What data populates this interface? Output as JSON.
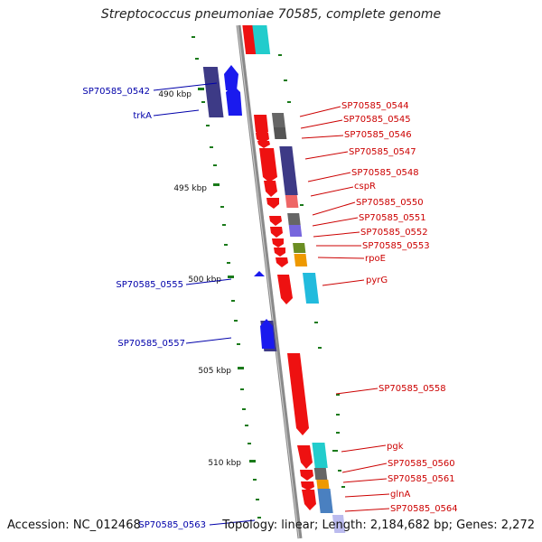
{
  "title": "Streptococcus pneumoniae 70585, complete genome",
  "footer": {
    "accession": "Accession: NC_012468",
    "summary": "Topology: linear; Length: 2,184,682 bp; Genes: 2,272"
  },
  "colors": {
    "backbone": "#8a8a8a",
    "forward_label": "#cc0000",
    "reverse_label": "#0000aa",
    "tick": "#1a7a1a"
  },
  "ticks": [
    {
      "label": "490 kbp"
    },
    {
      "label": "495 kbp"
    },
    {
      "label": "500 kbp"
    },
    {
      "label": "505 kbp"
    },
    {
      "label": "510 kbp"
    }
  ],
  "forward_labels": [
    "SP70585_0544",
    "SP70585_0545",
    "SP70585_0546",
    "SP70585_0547",
    "SP70585_0548",
    "cspR",
    "SP70585_0550",
    "SP70585_0551",
    "SP70585_0552",
    "SP70585_0553",
    "rpoE",
    "pyrG",
    "SP70585_0558",
    "pgk",
    "SP70585_0560",
    "SP70585_0561",
    "glnA",
    "SP70585_0564"
  ],
  "reverse_labels": [
    "SP70585_0542",
    "trkA",
    "SP70585_0555",
    "SP70585_0557",
    "SP70585_0563"
  ]
}
